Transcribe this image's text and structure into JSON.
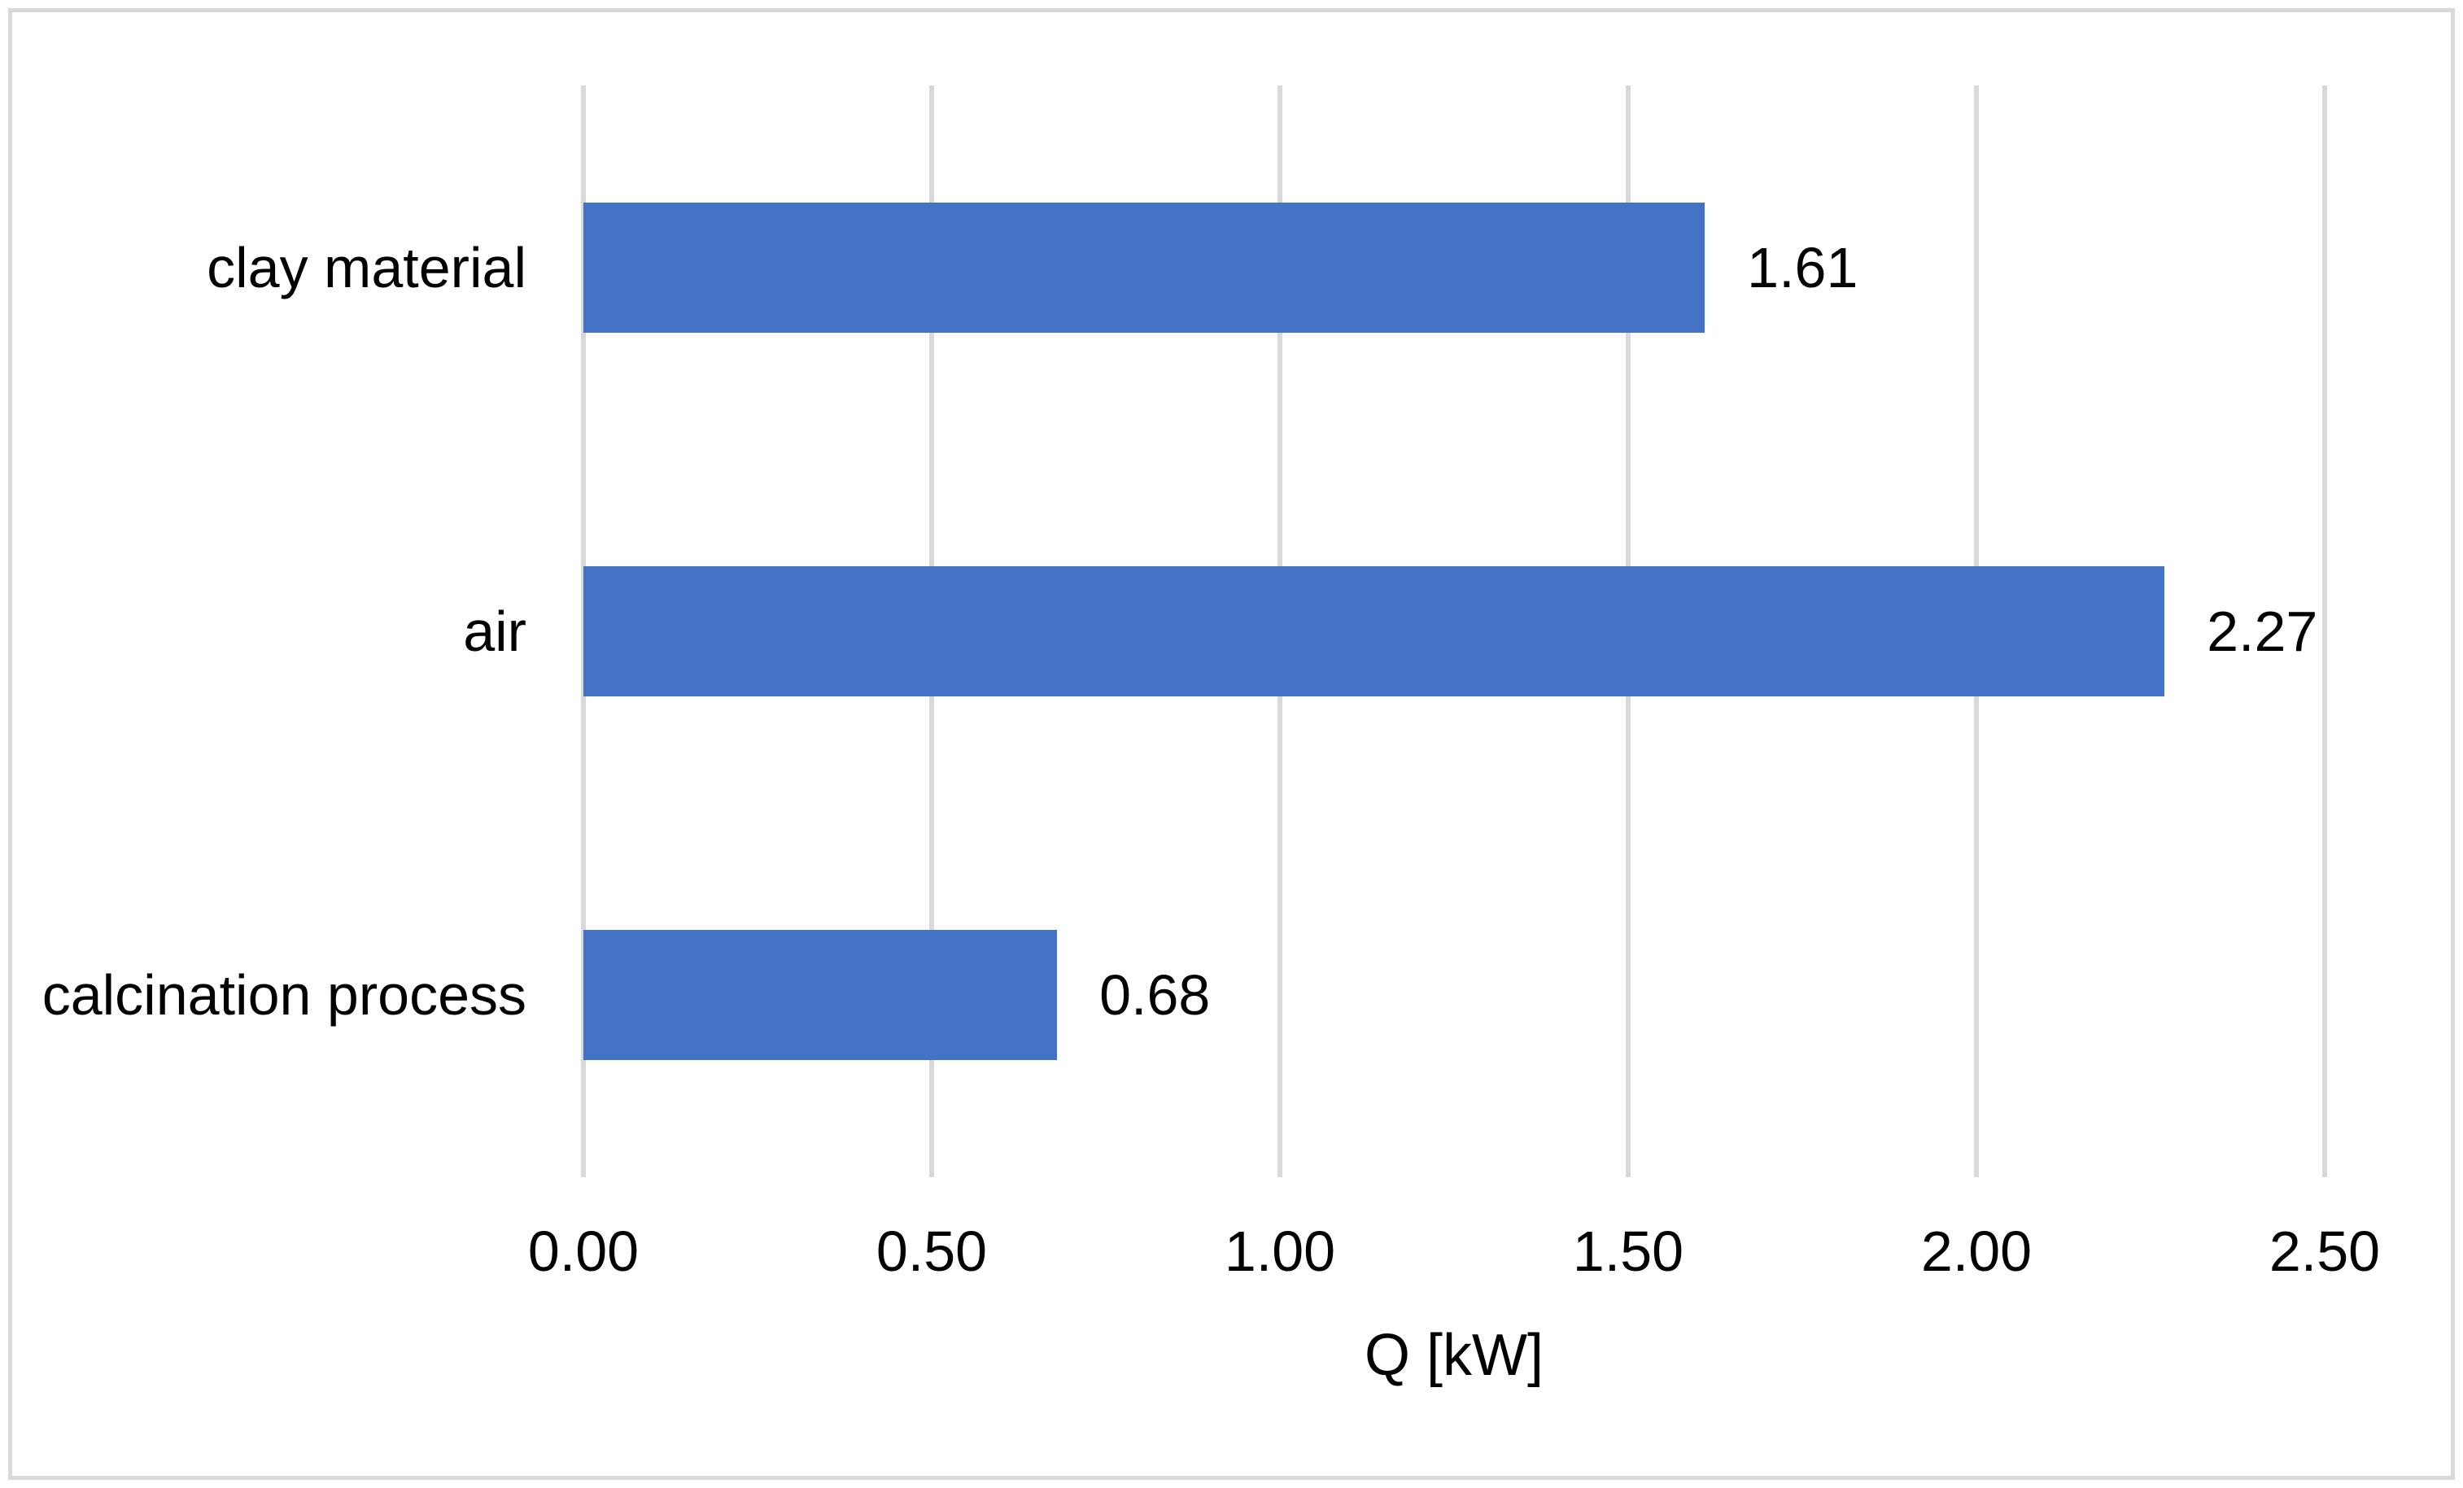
{
  "chart_data": {
    "type": "bar",
    "orientation": "horizontal",
    "categories": [
      "clay material",
      "air",
      "calcination process"
    ],
    "values": [
      1.61,
      2.27,
      0.68
    ],
    "data_labels": [
      "1.61",
      "2.27",
      "0.68"
    ],
    "xlabel": "Q [kW]",
    "xlim": [
      0,
      2.5
    ],
    "x_ticks": [
      {
        "value": 0.0,
        "label": "0.00"
      },
      {
        "value": 0.5,
        "label": "0.50"
      },
      {
        "value": 1.0,
        "label": "1.00"
      },
      {
        "value": 1.5,
        "label": "1.50"
      },
      {
        "value": 2.0,
        "label": "2.00"
      },
      {
        "value": 2.5,
        "label": "2.50"
      }
    ],
    "grid": "vertical-major",
    "legend": "none",
    "colors": {
      "bar": "#4472C4",
      "gridline": "#D9D9D9",
      "axis_line": "#D9D9D9",
      "text": "#000000",
      "chart_border": "#D9D9D9",
      "background": "#FFFFFF"
    }
  }
}
